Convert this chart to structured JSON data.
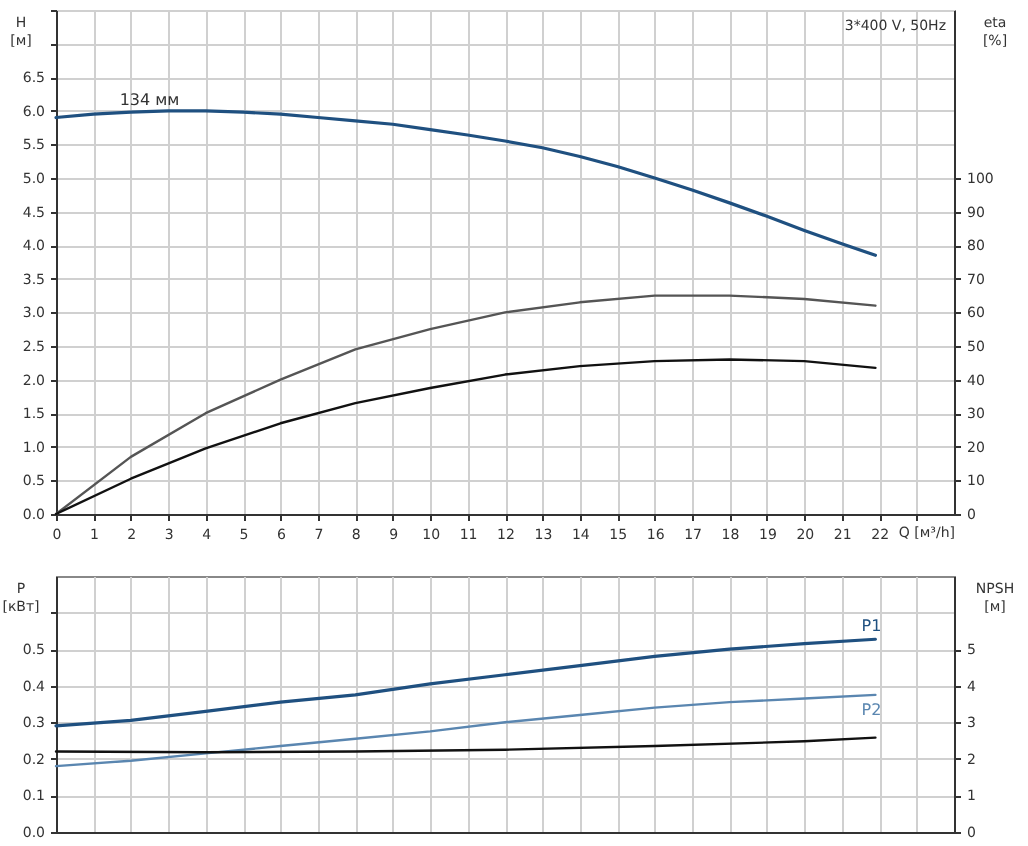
{
  "chart_data": [
    {
      "type": "line",
      "xlabel": "Q [м³/h]",
      "ylabel": "H [м]",
      "y2label": "eta [%]",
      "annotations": [
        {
          "text": "134 мм",
          "x": 2.5,
          "y": 6.0
        },
        "3*400 V, 50Hz"
      ],
      "xlim": [
        0,
        24
      ],
      "xticks": [
        0,
        1,
        2,
        3,
        4,
        5,
        6,
        7,
        8,
        9,
        10,
        11,
        12,
        13,
        14,
        15,
        16,
        17,
        18,
        19,
        20,
        21,
        22,
        {
          "value": 23,
          "label": null
        }
      ],
      "ylim": [
        0,
        7.5
      ],
      "yticks": [
        {
          "value": 0,
          "label": "0.0"
        },
        0.5,
        {
          "value": 1,
          "label": "1.0"
        },
        1.5,
        {
          "value": 2,
          "label": "2.0"
        },
        2.5,
        {
          "value": 3,
          "label": "3.0"
        },
        3.5,
        {
          "value": 4,
          "label": "4.0"
        },
        4.5,
        {
          "value": 5,
          "label": "5.0"
        },
        5.5,
        {
          "value": 6,
          "label": "6.0"
        },
        6.5,
        {
          "value": 7,
          "label": null
        },
        {
          "value": 7.5,
          "label": null
        }
      ],
      "y2lim": [
        0,
        150
      ],
      "y2ticks": [
        0,
        10,
        20,
        30,
        40,
        50,
        60,
        70,
        80,
        90,
        100
      ],
      "grid": true,
      "series": [
        {
          "color": "#1f5080",
          "x": [
            0,
            1,
            2,
            3,
            4,
            5,
            6,
            7,
            8,
            9,
            10,
            11,
            12,
            13,
            14,
            15,
            16,
            17,
            18,
            19,
            20,
            21,
            21.9
          ],
          "values": [
            5.9,
            5.95,
            5.98,
            6.0,
            6.0,
            5.98,
            5.95,
            5.9,
            5.85,
            5.8,
            5.72,
            5.64,
            5.55,
            5.45,
            5.32,
            5.17,
            5.0,
            4.82,
            4.63,
            4.43,
            4.22,
            4.02,
            3.85
          ]
        },
        {
          "color": "#555555",
          "axis": "y2",
          "x": [
            0,
            2,
            4,
            6,
            8,
            10,
            12,
            14,
            16,
            18,
            20,
            21.9
          ],
          "values": [
            0,
            17,
            30,
            40,
            49,
            55,
            60,
            63,
            65,
            65,
            64,
            62
          ]
        },
        {
          "color": "#111111",
          "axis": "y2",
          "x": [
            0,
            2,
            4,
            6,
            8,
            10,
            12,
            14,
            16,
            18,
            20,
            21.9
          ],
          "values": [
            0,
            10.5,
            19.5,
            27,
            33,
            37.5,
            41.5,
            44,
            45.5,
            46,
            45.5,
            43.5
          ]
        }
      ]
    },
    {
      "type": "line",
      "ylabel": "P [кВт]",
      "y2label": "NPSH [м]",
      "tick_labels": "y",
      "xlim": [
        0,
        24
      ],
      "xticks": [
        0,
        1,
        2,
        3,
        4,
        5,
        6,
        7,
        8,
        9,
        10,
        11,
        12,
        13,
        14,
        15,
        16,
        17,
        18,
        19,
        20,
        21,
        22,
        {
          "value": 23,
          "label": null
        }
      ],
      "ylim": [
        0,
        0.7
      ],
      "yticks": [
        {
          "value": 0,
          "label": "0.0"
        },
        0.1,
        0.2,
        0.3,
        0.4,
        0.5,
        {
          "value": 0.6,
          "label": null
        }
      ],
      "y2lim": [
        0,
        7
      ],
      "y2ticks": [
        0,
        1,
        2,
        3,
        4,
        5
      ],
      "grid": true,
      "series": [
        {
          "name": "P1",
          "color": "#1f5080",
          "x": [
            0,
            2,
            4,
            6,
            8,
            10,
            12,
            14,
            16,
            18,
            20,
            21.9
          ],
          "values": [
            0.29,
            0.305,
            0.33,
            0.355,
            0.375,
            0.405,
            0.43,
            0.455,
            0.48,
            0.5,
            0.515,
            0.527
          ]
        },
        {
          "name": "P2",
          "color": "#5a86b0",
          "x": [
            0,
            2,
            4,
            6,
            8,
            10,
            12,
            14,
            16,
            18,
            20,
            21.9
          ],
          "values": [
            0.18,
            0.195,
            0.215,
            0.235,
            0.255,
            0.275,
            0.3,
            0.32,
            0.34,
            0.355,
            0.365,
            0.375
          ]
        },
        {
          "color": "#111111",
          "axis": "y2",
          "x": [
            0,
            4,
            8,
            12,
            16,
            20,
            21.9
          ],
          "values": [
            2.2,
            2.18,
            2.2,
            2.25,
            2.35,
            2.48,
            2.58
          ]
        }
      ]
    }
  ]
}
